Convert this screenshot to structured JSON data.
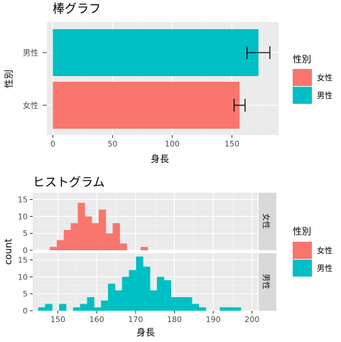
{
  "chart_data": [
    {
      "type": "bar",
      "orientation": "horizontal",
      "title": "棒グラフ",
      "xlabel": "身長",
      "ylabel": "性別",
      "categories": [
        "女性",
        "男性"
      ],
      "values": [
        156.4,
        172.2
      ],
      "error_bars": [
        {
          "category": "女性",
          "low": 151.8,
          "high": 161.0
        },
        {
          "category": "男性",
          "low": 162.6,
          "high": 181.8
        }
      ],
      "colors": {
        "女性": "#F8766D",
        "男性": "#00BFC4"
      },
      "xlim": [
        -5,
        189
      ],
      "xticks": [
        0,
        50,
        100,
        150
      ],
      "grid": true,
      "legend": {
        "title": "性別",
        "position": "right",
        "entries": [
          "女性",
          "男性"
        ]
      }
    },
    {
      "type": "histogram",
      "title": "ヒストグラム",
      "xlabel": "身長",
      "ylabel": "count",
      "bin_width": 1.8,
      "xlim": [
        143.5,
        201.5
      ],
      "ylim": [
        0,
        17
      ],
      "xticks": [
        150,
        160,
        170,
        180,
        190,
        200
      ],
      "yticks": [
        0,
        5,
        10,
        15
      ],
      "grid": true,
      "colors": {
        "女性": "#F8766D",
        "男性": "#00BFC4"
      },
      "facets": [
        {
          "label": "女性",
          "bins": [
            {
              "x": 148.8,
              "count": 1
            },
            {
              "x": 150.6,
              "count": 3
            },
            {
              "x": 152.4,
              "count": 6
            },
            {
              "x": 154.2,
              "count": 8
            },
            {
              "x": 156.0,
              "count": 14
            },
            {
              "x": 157.8,
              "count": 10
            },
            {
              "x": 159.6,
              "count": 8
            },
            {
              "x": 161.4,
              "count": 12
            },
            {
              "x": 163.2,
              "count": 5
            },
            {
              "x": 165.0,
              "count": 8
            },
            {
              "x": 166.8,
              "count": 2
            },
            {
              "x": 168.6,
              "count": 0
            },
            {
              "x": 170.4,
              "count": 0
            },
            {
              "x": 172.2,
              "count": 1
            }
          ]
        },
        {
          "label": "男性",
          "bins": [
            {
              "x": 145.8,
              "count": 1
            },
            {
              "x": 147.6,
              "count": 2
            },
            {
              "x": 149.4,
              "count": 0
            },
            {
              "x": 151.2,
              "count": 2
            },
            {
              "x": 153.0,
              "count": 0
            },
            {
              "x": 154.8,
              "count": 1
            },
            {
              "x": 156.6,
              "count": 2
            },
            {
              "x": 158.4,
              "count": 4
            },
            {
              "x": 160.2,
              "count": 1
            },
            {
              "x": 162.0,
              "count": 3
            },
            {
              "x": 163.8,
              "count": 8
            },
            {
              "x": 165.6,
              "count": 6
            },
            {
              "x": 167.4,
              "count": 10
            },
            {
              "x": 169.2,
              "count": 12
            },
            {
              "x": 171.0,
              "count": 16
            },
            {
              "x": 172.8,
              "count": 13
            },
            {
              "x": 174.6,
              "count": 6
            },
            {
              "x": 176.4,
              "count": 10
            },
            {
              "x": 178.2,
              "count": 9
            },
            {
              "x": 180.0,
              "count": 4
            },
            {
              "x": 181.8,
              "count": 4
            },
            {
              "x": 183.6,
              "count": 4
            },
            {
              "x": 185.4,
              "count": 2
            },
            {
              "x": 187.2,
              "count": 1
            },
            {
              "x": 189.0,
              "count": 0
            },
            {
              "x": 190.8,
              "count": 0
            },
            {
              "x": 192.6,
              "count": 1
            },
            {
              "x": 194.4,
              "count": 1
            },
            {
              "x": 196.2,
              "count": 1
            }
          ]
        }
      ],
      "legend": {
        "title": "性別",
        "position": "right",
        "entries": [
          "女性",
          "男性"
        ]
      }
    }
  ]
}
